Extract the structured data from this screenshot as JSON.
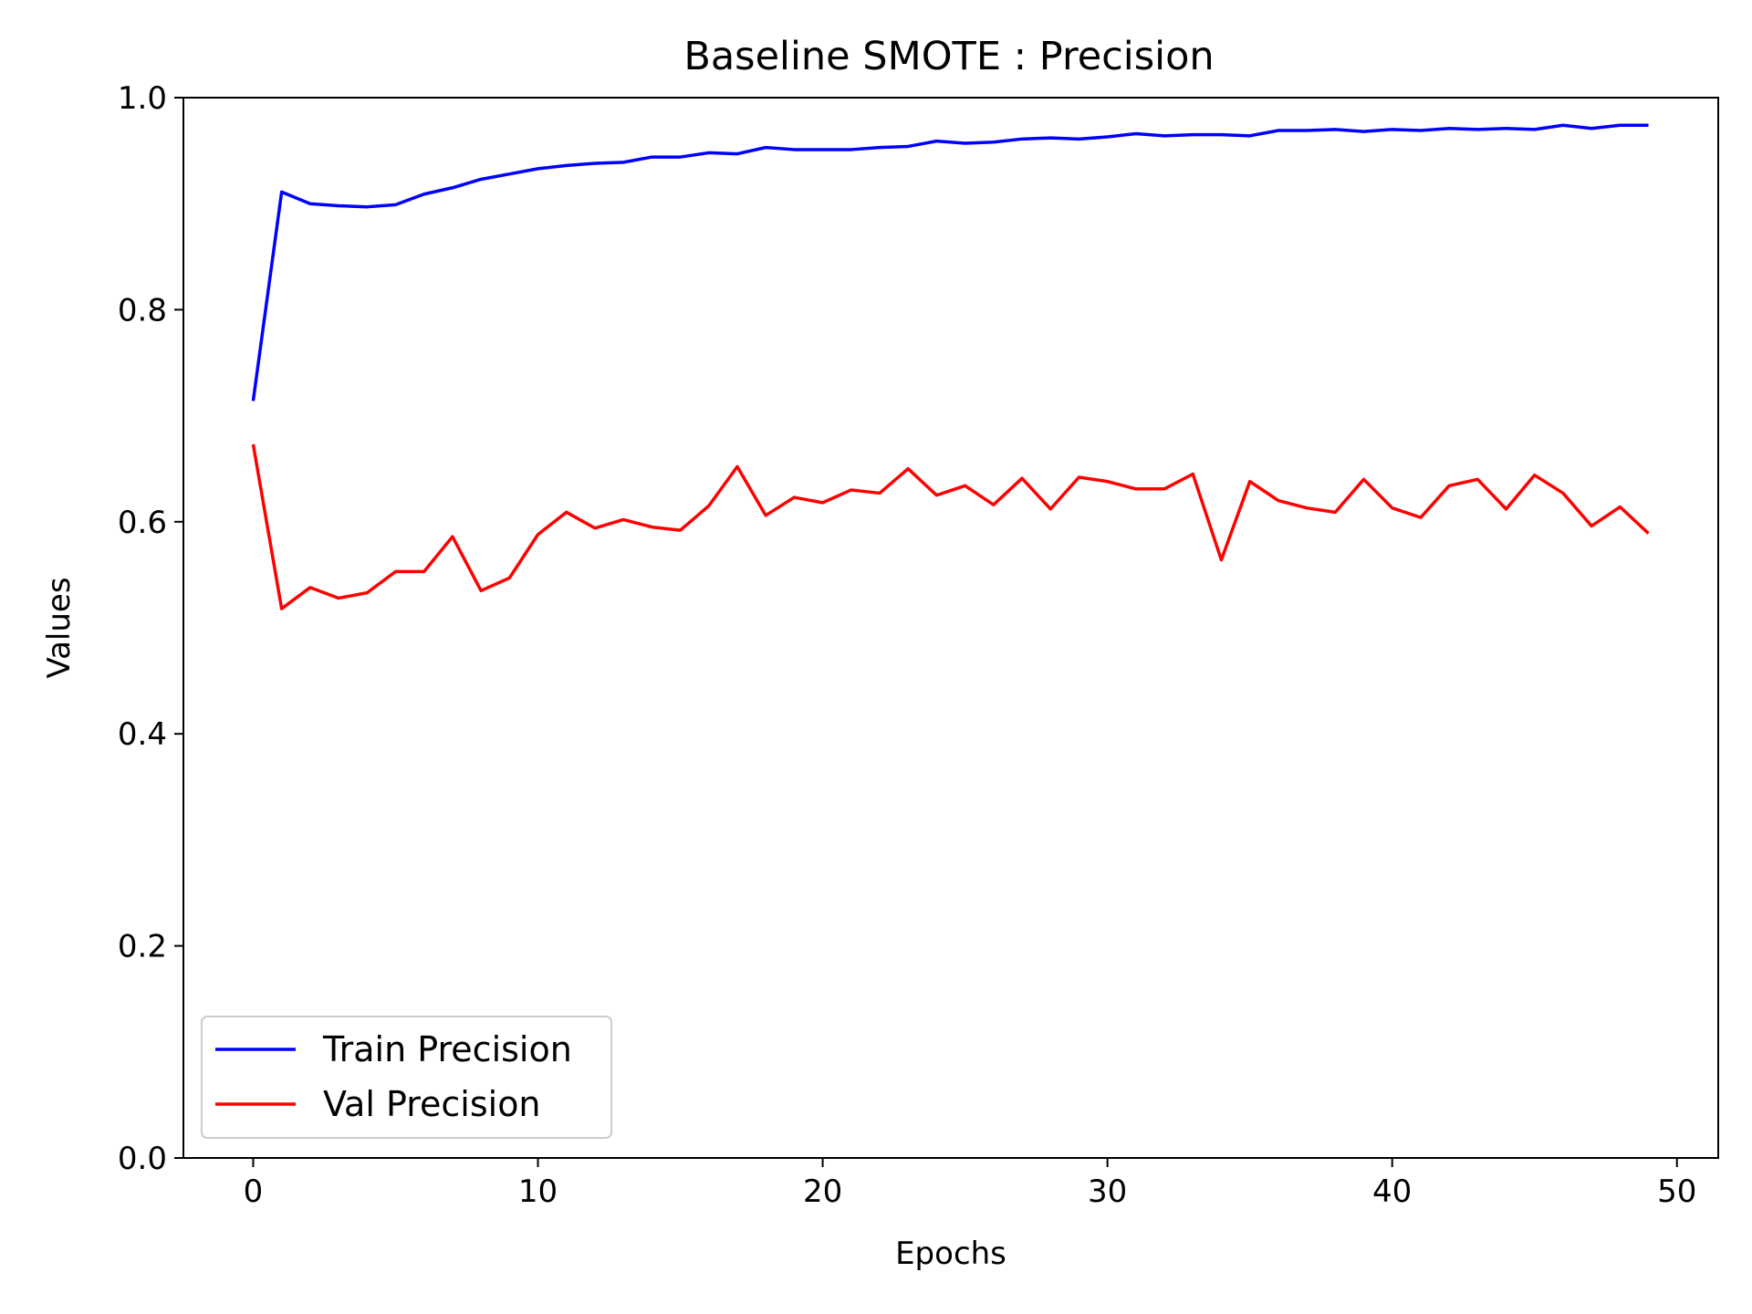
{
  "chart_data": {
    "type": "line",
    "title": "Baseline SMOTE : Precision",
    "xlabel": "Epochs",
    "ylabel": "Values",
    "xlim": [
      -2.45,
      51.45
    ],
    "ylim": [
      0.0,
      1.0
    ],
    "xticks": [
      0,
      10,
      20,
      30,
      40,
      50
    ],
    "xtick_labels": [
      "0",
      "10",
      "20",
      "30",
      "40",
      "50"
    ],
    "yticks": [
      0.0,
      0.2,
      0.4,
      0.6,
      0.8,
      1.0
    ],
    "ytick_labels": [
      "0.0",
      "0.2",
      "0.4",
      "0.6",
      "0.8",
      "1.0"
    ],
    "grid": false,
    "legend_position": "lower-left",
    "x": [
      0,
      1,
      2,
      3,
      4,
      5,
      6,
      7,
      8,
      9,
      10,
      11,
      12,
      13,
      14,
      15,
      16,
      17,
      18,
      19,
      20,
      21,
      22,
      23,
      24,
      25,
      26,
      27,
      28,
      29,
      30,
      31,
      32,
      33,
      34,
      35,
      36,
      37,
      38,
      39,
      40,
      41,
      42,
      43,
      44,
      45,
      46,
      47,
      48,
      49
    ],
    "series": [
      {
        "name": "Train Precision",
        "color": "#0000ff",
        "values": [
          0.714,
          0.911,
          0.9,
          0.898,
          0.897,
          0.899,
          0.909,
          0.915,
          0.923,
          0.928,
          0.933,
          0.936,
          0.938,
          0.939,
          0.944,
          0.944,
          0.948,
          0.947,
          0.953,
          0.951,
          0.951,
          0.951,
          0.953,
          0.954,
          0.959,
          0.957,
          0.958,
          0.961,
          0.962,
          0.961,
          0.963,
          0.966,
          0.964,
          0.965,
          0.965,
          0.964,
          0.969,
          0.969,
          0.97,
          0.968,
          0.97,
          0.969,
          0.971,
          0.97,
          0.971,
          0.97,
          0.974,
          0.971,
          0.974,
          0.974
        ]
      },
      {
        "name": "Val Precision",
        "color": "#ff0000",
        "values": [
          0.673,
          0.518,
          0.538,
          0.528,
          0.533,
          0.553,
          0.553,
          0.586,
          0.535,
          0.547,
          0.588,
          0.609,
          0.594,
          0.602,
          0.595,
          0.592,
          0.615,
          0.652,
          0.606,
          0.623,
          0.618,
          0.63,
          0.627,
          0.65,
          0.625,
          0.634,
          0.616,
          0.641,
          0.612,
          0.642,
          0.638,
          0.631,
          0.631,
          0.645,
          0.564,
          0.638,
          0.62,
          0.613,
          0.609,
          0.64,
          0.613,
          0.604,
          0.634,
          0.64,
          0.612,
          0.644,
          0.627,
          0.596,
          0.614,
          0.589
        ]
      }
    ]
  }
}
